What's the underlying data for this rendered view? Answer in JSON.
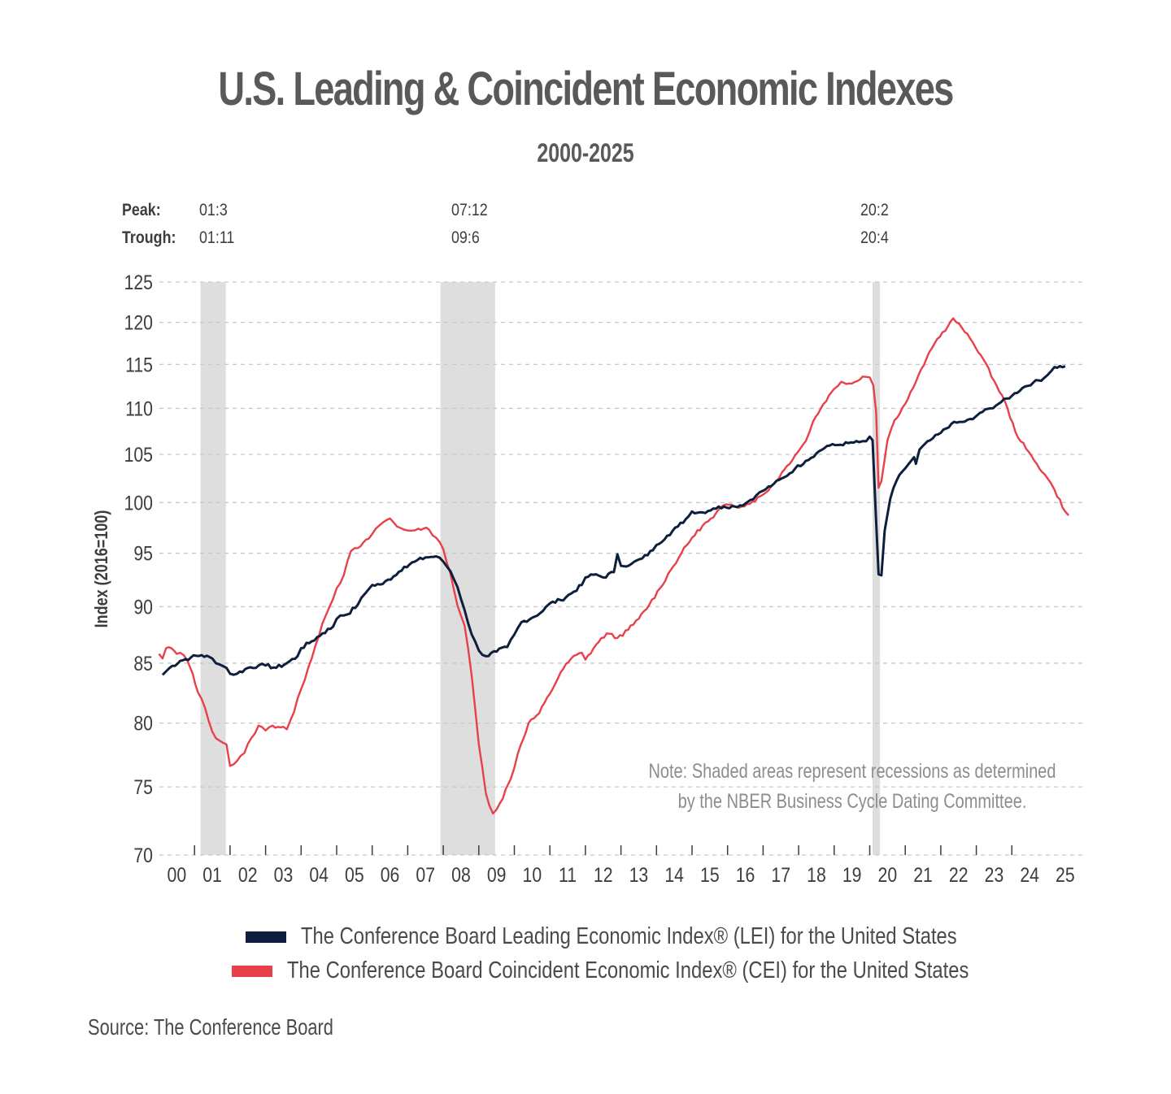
{
  "header": {
    "title": "U.S. Leading & Coincident Economic Indexes",
    "subtitle": "2000-2025"
  },
  "cycles": {
    "peak_label": "Peak:",
    "trough_label": "Trough:",
    "items": [
      {
        "peak": "01:3",
        "trough": "01:11"
      },
      {
        "peak": "07:12",
        "trough": "09:6"
      },
      {
        "peak": "20:2",
        "trough": "20:4"
      }
    ]
  },
  "note": {
    "line1": "Note: Shaded areas represent recessions as determined",
    "line2": "by the NBER Business Cycle Dating Committee."
  },
  "source": "Source: The Conference Board",
  "colors": {
    "lei": "#0d1f3c",
    "cei": "#e8404a",
    "recession": "#dedede",
    "grid": "#c8c8c8"
  },
  "chart_data": {
    "type": "line",
    "title": "U.S. Leading & Coincident Economic Indexes",
    "subtitle": "2000-2025",
    "xlabel": "",
    "ylabel": "Index (2016=100)",
    "yscale": "log",
    "ylim": [
      70,
      125
    ],
    "yticks": [
      70,
      75,
      80,
      85,
      90,
      95,
      100,
      105,
      110,
      115,
      120,
      125
    ],
    "xlim": [
      2000,
      2025.7
    ],
    "xtick_labels": [
      "00",
      "01",
      "02",
      "03",
      "04",
      "05",
      "06",
      "07",
      "08",
      "09",
      "10",
      "11",
      "12",
      "13",
      "14",
      "15",
      "16",
      "17",
      "18",
      "19",
      "20",
      "21",
      "22",
      "23",
      "24",
      "25"
    ],
    "grid": "horizontal-dashed",
    "legend_position": "bottom-center",
    "recessions": [
      {
        "start": 2001.17,
        "end": 2001.88
      },
      {
        "start": 2007.92,
        "end": 2009.46
      },
      {
        "start": 2020.08,
        "end": 2020.29
      }
    ],
    "series": [
      {
        "name": "The Conference Board Leading Economic Index® (LEI) for the United States",
        "key": "lei",
        "points": [
          [
            2000.1,
            84.0
          ],
          [
            2000.3,
            84.6
          ],
          [
            2000.6,
            85.2
          ],
          [
            2000.9,
            85.5
          ],
          [
            2001.2,
            85.7
          ],
          [
            2001.5,
            85.4
          ],
          [
            2001.7,
            84.9
          ],
          [
            2001.9,
            84.6
          ],
          [
            2002.0,
            84.1
          ],
          [
            2002.2,
            84.1
          ],
          [
            2002.5,
            84.6
          ],
          [
            2002.8,
            84.8
          ],
          [
            2003.0,
            84.8
          ],
          [
            2003.3,
            84.6
          ],
          [
            2003.6,
            85.0
          ],
          [
            2003.9,
            85.6
          ],
          [
            2004.0,
            86.3
          ],
          [
            2004.3,
            86.9
          ],
          [
            2004.6,
            87.6
          ],
          [
            2004.9,
            88.2
          ],
          [
            2005.0,
            88.9
          ],
          [
            2005.1,
            89.2
          ],
          [
            2005.3,
            89.3
          ],
          [
            2005.6,
            90.2
          ],
          [
            2005.8,
            91.2
          ],
          [
            2006.0,
            92.0
          ],
          [
            2006.3,
            92.1
          ],
          [
            2006.6,
            92.8
          ],
          [
            2006.9,
            93.7
          ],
          [
            2007.2,
            94.2
          ],
          [
            2007.5,
            94.6
          ],
          [
            2007.8,
            94.7
          ],
          [
            2008.0,
            94.2
          ],
          [
            2008.2,
            93.3
          ],
          [
            2008.4,
            91.8
          ],
          [
            2008.6,
            89.7
          ],
          [
            2008.8,
            87.5
          ],
          [
            2009.0,
            86.1
          ],
          [
            2009.2,
            85.6
          ],
          [
            2009.5,
            86.0
          ],
          [
            2009.8,
            86.4
          ],
          [
            2010.0,
            87.5
          ],
          [
            2010.2,
            88.6
          ],
          [
            2010.5,
            89.0
          ],
          [
            2010.8,
            89.6
          ],
          [
            2011.0,
            90.3
          ],
          [
            2011.3,
            90.6
          ],
          [
            2011.6,
            91.2
          ],
          [
            2011.9,
            92.0
          ],
          [
            2012.0,
            92.7
          ],
          [
            2012.3,
            93.0
          ],
          [
            2012.5,
            92.7
          ],
          [
            2012.8,
            93.2
          ],
          [
            2012.9,
            94.9
          ],
          [
            2013.0,
            93.8
          ],
          [
            2013.3,
            94.0
          ],
          [
            2013.6,
            94.5
          ],
          [
            2013.9,
            95.3
          ],
          [
            2014.0,
            95.8
          ],
          [
            2014.3,
            96.7
          ],
          [
            2014.6,
            97.6
          ],
          [
            2014.9,
            98.6
          ],
          [
            2015.0,
            99.1
          ],
          [
            2015.3,
            99.0
          ],
          [
            2015.6,
            99.4
          ],
          [
            2015.9,
            99.6
          ],
          [
            2016.2,
            99.6
          ],
          [
            2016.5,
            99.9
          ],
          [
            2016.8,
            100.7
          ],
          [
            2017.0,
            101.2
          ],
          [
            2017.3,
            101.9
          ],
          [
            2017.6,
            102.6
          ],
          [
            2017.9,
            103.5
          ],
          [
            2018.2,
            104.3
          ],
          [
            2018.5,
            105.1
          ],
          [
            2018.8,
            105.9
          ],
          [
            2019.1,
            106.0
          ],
          [
            2019.4,
            106.2
          ],
          [
            2019.7,
            106.3
          ],
          [
            2019.9,
            106.4
          ],
          [
            2020.0,
            106.9
          ],
          [
            2020.08,
            106.5
          ],
          [
            2020.17,
            99.0
          ],
          [
            2020.25,
            93.0
          ],
          [
            2020.33,
            92.9
          ],
          [
            2020.42,
            97.2
          ],
          [
            2020.58,
            100.4
          ],
          [
            2020.75,
            102.2
          ],
          [
            2020.92,
            103.2
          ],
          [
            2021.1,
            104.0
          ],
          [
            2021.25,
            104.7
          ],
          [
            2021.3,
            104.0
          ],
          [
            2021.4,
            105.5
          ],
          [
            2021.7,
            106.5
          ],
          [
            2022.0,
            107.3
          ],
          [
            2022.3,
            108.3
          ],
          [
            2022.6,
            108.5
          ],
          [
            2022.9,
            108.8
          ],
          [
            2023.1,
            109.5
          ],
          [
            2023.4,
            110.0
          ],
          [
            2023.7,
            110.7
          ],
          [
            2024.0,
            111.4
          ],
          [
            2024.3,
            112.3
          ],
          [
            2024.6,
            112.9
          ],
          [
            2024.9,
            113.4
          ],
          [
            2025.1,
            114.2
          ],
          [
            2025.2,
            114.7
          ],
          [
            2025.5,
            114.8
          ]
        ]
      },
      {
        "name": "The Conference Board Coincident Economic Index® (CEI) for the United States",
        "key": "cei",
        "points": [
          [
            2000.0,
            85.8
          ],
          [
            2000.1,
            85.4
          ],
          [
            2000.2,
            86.3
          ],
          [
            2000.35,
            86.3
          ],
          [
            2000.5,
            85.8
          ],
          [
            2000.6,
            85.9
          ],
          [
            2000.8,
            85.2
          ],
          [
            2000.95,
            84.1
          ],
          [
            2001.1,
            82.5
          ],
          [
            2001.3,
            81.2
          ],
          [
            2001.5,
            79.3
          ],
          [
            2001.7,
            78.6
          ],
          [
            2001.9,
            78.3
          ],
          [
            2002.0,
            76.6
          ],
          [
            2002.2,
            77.0
          ],
          [
            2002.4,
            77.6
          ],
          [
            2002.6,
            78.8
          ],
          [
            2002.8,
            79.8
          ],
          [
            2003.0,
            79.4
          ],
          [
            2003.2,
            79.8
          ],
          [
            2003.5,
            79.7
          ],
          [
            2003.6,
            79.5
          ],
          [
            2003.8,
            80.9
          ],
          [
            2004.0,
            82.8
          ],
          [
            2004.2,
            84.6
          ],
          [
            2004.4,
            86.5
          ],
          [
            2004.6,
            88.5
          ],
          [
            2004.8,
            90.0
          ],
          [
            2005.0,
            91.7
          ],
          [
            2005.2,
            92.9
          ],
          [
            2005.4,
            95.2
          ],
          [
            2005.6,
            95.5
          ],
          [
            2005.9,
            96.4
          ],
          [
            2006.1,
            97.4
          ],
          [
            2006.3,
            98.0
          ],
          [
            2006.5,
            98.4
          ],
          [
            2006.7,
            97.6
          ],
          [
            2006.9,
            97.3
          ],
          [
            2007.1,
            97.2
          ],
          [
            2007.3,
            97.4
          ],
          [
            2007.6,
            97.3
          ],
          [
            2007.8,
            96.5
          ],
          [
            2008.0,
            95.4
          ],
          [
            2008.2,
            93.1
          ],
          [
            2008.4,
            90.1
          ],
          [
            2008.6,
            88.3
          ],
          [
            2008.8,
            83.9
          ],
          [
            2009.0,
            78.3
          ],
          [
            2009.2,
            74.5
          ],
          [
            2009.4,
            73.0
          ],
          [
            2009.6,
            73.8
          ],
          [
            2009.9,
            75.6
          ],
          [
            2010.1,
            77.6
          ],
          [
            2010.4,
            80.0
          ],
          [
            2010.7,
            80.8
          ],
          [
            2011.0,
            82.4
          ],
          [
            2011.3,
            84.2
          ],
          [
            2011.6,
            85.4
          ],
          [
            2011.9,
            85.9
          ],
          [
            2012.0,
            85.3
          ],
          [
            2012.3,
            86.6
          ],
          [
            2012.6,
            87.6
          ],
          [
            2012.9,
            87.2
          ],
          [
            2013.2,
            87.9
          ],
          [
            2013.5,
            88.9
          ],
          [
            2013.8,
            90.2
          ],
          [
            2014.1,
            91.7
          ],
          [
            2014.4,
            93.4
          ],
          [
            2014.7,
            95.0
          ],
          [
            2015.0,
            96.5
          ],
          [
            2015.3,
            97.7
          ],
          [
            2015.6,
            98.5
          ],
          [
            2015.8,
            99.5
          ],
          [
            2016.1,
            99.8
          ],
          [
            2016.4,
            99.6
          ],
          [
            2016.7,
            100.1
          ],
          [
            2017.0,
            100.8
          ],
          [
            2017.3,
            101.9
          ],
          [
            2017.6,
            103.4
          ],
          [
            2017.9,
            104.9
          ],
          [
            2018.2,
            106.4
          ],
          [
            2018.4,
            108.5
          ],
          [
            2018.7,
            110.5
          ],
          [
            2019.0,
            112.2
          ],
          [
            2019.2,
            113.0
          ],
          [
            2019.5,
            112.8
          ],
          [
            2019.8,
            113.6
          ],
          [
            2020.0,
            113.5
          ],
          [
            2020.1,
            112.6
          ],
          [
            2020.18,
            109.6
          ],
          [
            2020.25,
            101.5
          ],
          [
            2020.33,
            102.2
          ],
          [
            2020.5,
            106.5
          ],
          [
            2020.7,
            108.7
          ],
          [
            2021.0,
            110.5
          ],
          [
            2021.3,
            113.0
          ],
          [
            2021.6,
            115.7
          ],
          [
            2021.9,
            118.0
          ],
          [
            2022.2,
            119.5
          ],
          [
            2022.35,
            120.5
          ],
          [
            2022.6,
            119.3
          ],
          [
            2022.9,
            117.6
          ],
          [
            2023.2,
            115.6
          ],
          [
            2023.5,
            113.1
          ],
          [
            2023.8,
            110.8
          ],
          [
            2024.1,
            107.4
          ],
          [
            2024.4,
            105.6
          ],
          [
            2024.7,
            104.0
          ],
          [
            2025.0,
            102.5
          ],
          [
            2025.2,
            101.3
          ],
          [
            2025.5,
            99.1
          ],
          [
            2025.6,
            98.7
          ]
        ]
      }
    ]
  }
}
